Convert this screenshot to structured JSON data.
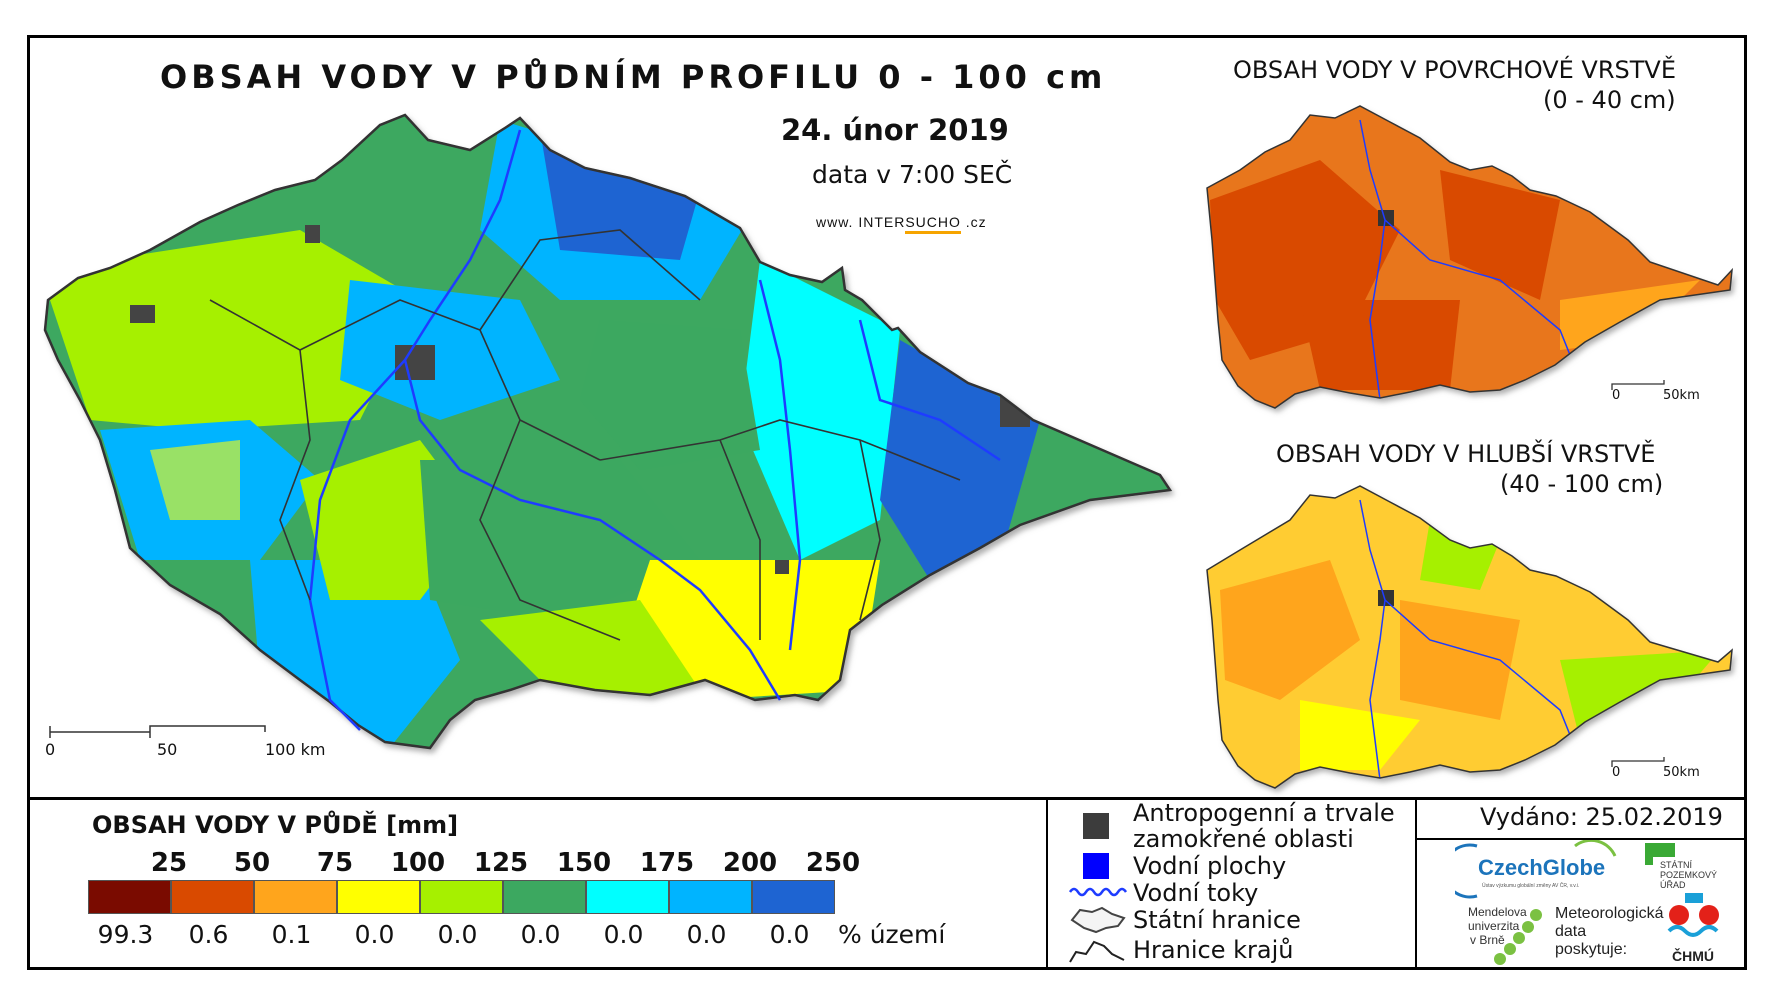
{
  "main_map": {
    "title": "OBSAH VODY V PŮDNÍM PROFILU 0 - 100 cm",
    "date": "24. únor 2019",
    "data_time": "data v 7:00 SEČ",
    "website_prefix": "www.",
    "website_brand_plain": "INTER",
    "website_brand_accent": "SUCHO",
    "website_suffix": ".cz",
    "scale_labels": [
      "0",
      "50",
      "100 km"
    ]
  },
  "inset_top": {
    "title": "OBSAH VODY V POVRCHOVÉ VRSTVĚ",
    "subtitle": "(0 - 40 cm)",
    "scale_labels": [
      "0",
      "50km"
    ]
  },
  "inset_bottom": {
    "title": "OBSAH VODY V HLUBŠÍ VRSTVĚ",
    "subtitle": "(40 - 100 cm)",
    "scale_labels": [
      "0",
      "50km"
    ]
  },
  "legend": {
    "title": "OBSAH VODY V PŮDĚ [mm]",
    "class_breaks": [
      "25",
      "50",
      "75",
      "100",
      "125",
      "150",
      "175",
      "200",
      "250"
    ],
    "colors": [
      "#7a0b00",
      "#d94a00",
      "#ffa51c",
      "#ffff00",
      "#a6f000",
      "#3ca860",
      "#00ffff",
      "#00b4ff",
      "#1e64d2"
    ],
    "percent_values": [
      "99.3",
      "0.6",
      "0.1",
      "0.0",
      "0.0",
      "0.0",
      "0.0",
      "0.0",
      "0.0"
    ],
    "percent_unit": "% území"
  },
  "symbols_legend": {
    "anthropogenic_line1": "Antropogenní a trvale",
    "anthropogenic_line2": "zamokřené oblasti",
    "water_bodies": "Vodní plochy",
    "rivers": "Vodní toky",
    "state_border": "Státní hranice",
    "region_border": "Hranice krajů"
  },
  "issued": "Vydáno: 25.02.2019",
  "logos": {
    "czechglobe": "CzechGlobe",
    "czechglobe_sub": "Ústav výzkumu globální změny AV ČR, v.v.i.",
    "spu_line1": "STÁTNÍ",
    "spu_line2": "POZEMKOVÝ",
    "spu_line3": "ÚŘAD",
    "mendel_line1": "Mendelova",
    "mendel_line2": "univerzita",
    "mendel_line3": "v Brně",
    "met_line1": "Meteorologická",
    "met_line2": "data",
    "met_line3": "poskytuje:",
    "chmu": "ČHMÚ"
  }
}
